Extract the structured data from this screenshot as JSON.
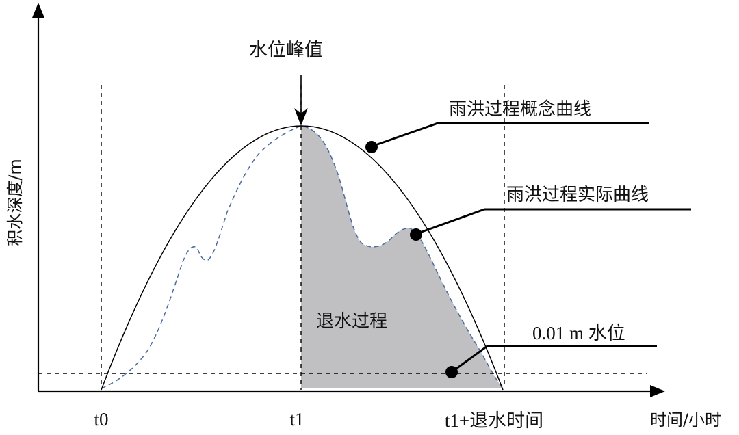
{
  "axes": {
    "y_label": "积水深度/m",
    "x_label": "时间/小时"
  },
  "ticks": {
    "t0": "t0",
    "t1": "t1",
    "t_end": "t1+退水时间"
  },
  "annotations": {
    "peak": "水位峰值",
    "concept_curve": "雨洪过程概念曲线",
    "actual_curve": "雨洪过程实际曲线",
    "recession": "退水过程",
    "threshold": "0.01 m 水位"
  },
  "colors": {
    "shade": "#c0c0c2",
    "actual_curve": "#4a6aa0",
    "line": "#000000"
  }
}
